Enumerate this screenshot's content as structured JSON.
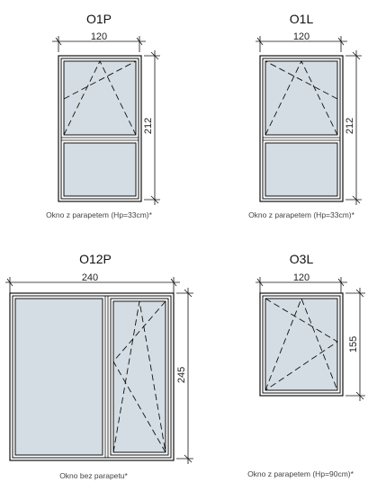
{
  "windows": [
    {
      "title": "O1P",
      "width_label": "120",
      "height_label": "212",
      "caption": "Okno z parapetem (Hp=33cm)*"
    },
    {
      "title": "O1L",
      "width_label": "120",
      "height_label": "212",
      "caption": "Okno z parapetem (Hp=33cm)*"
    },
    {
      "title": "O12P",
      "width_label": "240",
      "height_label": "245",
      "caption": "Okno bez parapetu*"
    },
    {
      "title": "O3L",
      "width_label": "120",
      "height_label": "155",
      "caption": "Okno z parapetem (Hp=90cm)*"
    }
  ],
  "colors": {
    "glass": "#d4dde3",
    "line": "#111111"
  }
}
